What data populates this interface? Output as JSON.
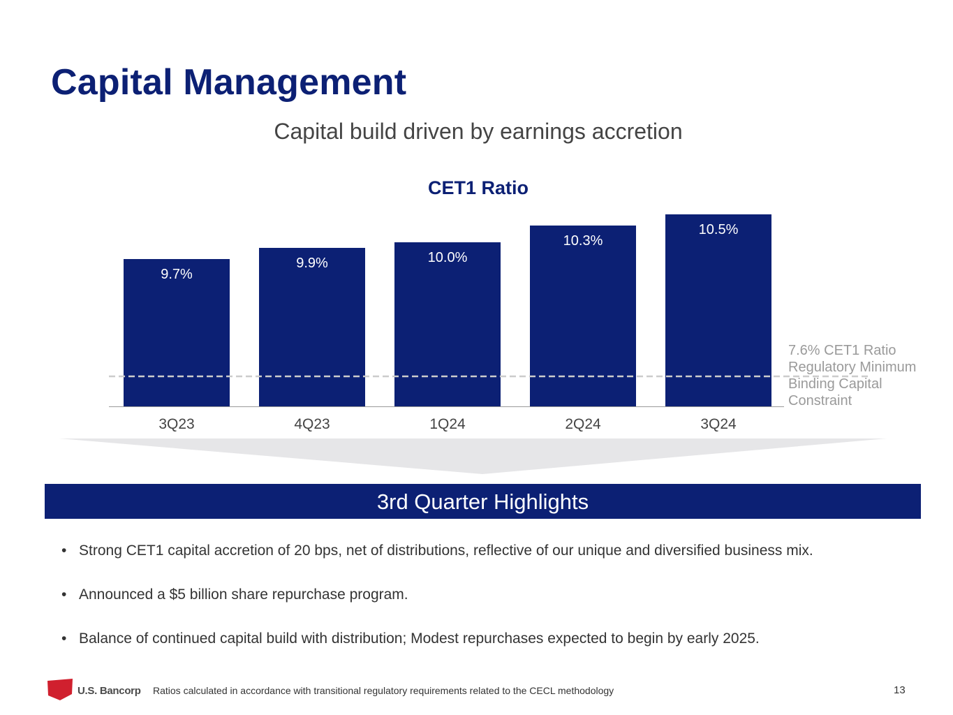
{
  "page": {
    "title": "Capital Management",
    "subtitle": "Capital build driven by earnings accretion",
    "banner": "3rd Quarter Highlights",
    "bullets": [
      "Strong CET1 capital accretion of 20 bps, net of distributions, reflective of our unique and diversified business mix.",
      "Announced a $5 billion share repurchase program.",
      "Balance of continued capital build with distribution; Modest repurchases expected to begin by early 2025."
    ],
    "footer": {
      "logo_text": "U.S. Bancorp",
      "footnote": "Ratios calculated in accordance with transitional regulatory requirements related to the CECL methodology",
      "page_number": "13"
    }
  },
  "chart_data": {
    "type": "bar",
    "title": "CET1 Ratio",
    "categories": [
      "3Q23",
      "4Q23",
      "1Q24",
      "2Q24",
      "3Q24"
    ],
    "values": [
      9.7,
      9.9,
      10.0,
      10.3,
      10.5
    ],
    "data_labels": [
      "9.7%",
      "9.9%",
      "10.0%",
      "10.3%",
      "10.5%"
    ],
    "reference_line": {
      "value": 7.6,
      "label_lines": [
        "7.6% CET1 Ratio",
        "Regulatory Minimum",
        "Binding Capital",
        "Constraint"
      ],
      "style": "dashed"
    },
    "grid": false,
    "legend": "none",
    "colors": {
      "bar": "#0c2074",
      "reference": "#cccccc",
      "label": "#ffffff"
    }
  }
}
